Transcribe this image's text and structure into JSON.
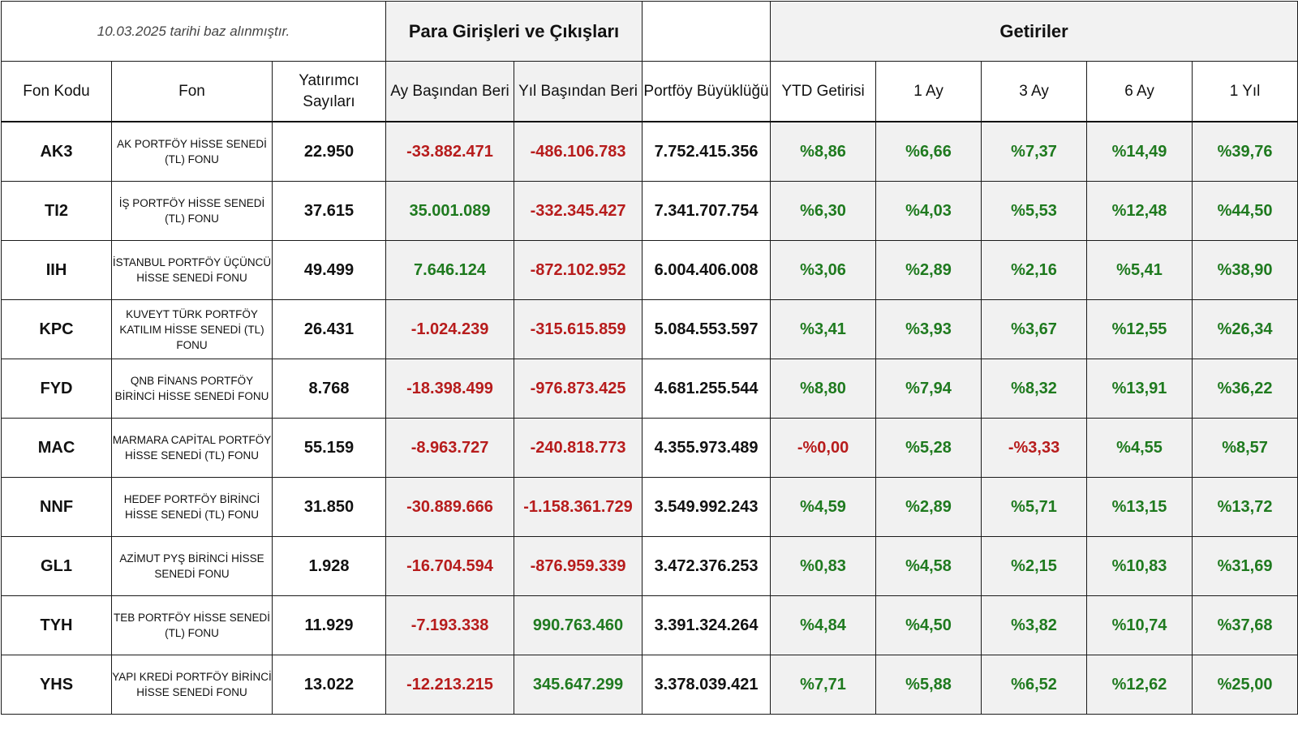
{
  "note": "10.03.2025  tarihi baz alınmıştır.",
  "group_flows": "Para Girişleri ve Çıkışları",
  "group_returns": "Getiriler",
  "headers": {
    "code": "Fon Kodu",
    "fund": "Fon",
    "investors": "Yatırımcı Sayıları",
    "mtd": "Ay Başından Beri",
    "ytd": "Yıl Başından Beri",
    "size": "Portföy Büyüklüğü",
    "ret_ytd": "YTD Getirisi",
    "ret_1m": "1 Ay",
    "ret_3m": "3 Ay",
    "ret_6m": "6 Ay",
    "ret_1y": "1 Yıl"
  },
  "colors": {
    "negative": "#b71c1c",
    "positive": "#1f7a1f",
    "shade": "#f1f1f1"
  },
  "rows": [
    {
      "code": "AK3",
      "fund": "AK PORTFÖY HİSSE SENEDİ (TL) FONU",
      "investors": "22.950",
      "mtd": "-33.882.471",
      "ytd": "-486.106.783",
      "size": "7.752.415.356",
      "r_ytd": "%8,86",
      "r_1m": "%6,66",
      "r_3m": "%7,37",
      "r_6m": "%14,49",
      "r_1y": "%39,76"
    },
    {
      "code": "TI2",
      "fund": "İŞ PORTFÖY HİSSE SENEDİ (TL) FONU",
      "investors": "37.615",
      "mtd": "35.001.089",
      "ytd": "-332.345.427",
      "size": "7.341.707.754",
      "r_ytd": "%6,30",
      "r_1m": "%4,03",
      "r_3m": "%5,53",
      "r_6m": "%12,48",
      "r_1y": "%44,50"
    },
    {
      "code": "IIH",
      "fund": "İSTANBUL PORTFÖY ÜÇÜNCÜ HİSSE SENEDİ FONU",
      "investors": "49.499",
      "mtd": "7.646.124",
      "ytd": "-872.102.952",
      "size": "6.004.406.008",
      "r_ytd": "%3,06",
      "r_1m": "%2,89",
      "r_3m": "%2,16",
      "r_6m": "%5,41",
      "r_1y": "%38,90"
    },
    {
      "code": "KPC",
      "fund": "KUVEYT TÜRK PORTFÖY KATILIM HİSSE SENEDİ (TL) FONU",
      "investors": "26.431",
      "mtd": "-1.024.239",
      "ytd": "-315.615.859",
      "size": "5.084.553.597",
      "r_ytd": "%3,41",
      "r_1m": "%3,93",
      "r_3m": "%3,67",
      "r_6m": "%12,55",
      "r_1y": "%26,34"
    },
    {
      "code": "FYD",
      "fund": "QNB FİNANS PORTFÖY BİRİNCİ HİSSE SENEDİ FONU",
      "investors": "8.768",
      "mtd": "-18.398.499",
      "ytd": "-976.873.425",
      "size": "4.681.255.544",
      "r_ytd": "%8,80",
      "r_1m": "%7,94",
      "r_3m": "%8,32",
      "r_6m": "%13,91",
      "r_1y": "%36,22"
    },
    {
      "code": "MAC",
      "fund": "MARMARA CAPİTAL PORTFÖY HİSSE SENEDİ (TL) FONU",
      "investors": "55.159",
      "mtd": "-8.963.727",
      "ytd": "-240.818.773",
      "size": "4.355.973.489",
      "r_ytd": "-%0,00",
      "r_1m": "%5,28",
      "r_3m": "-%3,33",
      "r_6m": "%4,55",
      "r_1y": "%8,57"
    },
    {
      "code": "NNF",
      "fund": "HEDEF PORTFÖY BİRİNCİ HİSSE SENEDİ (TL) FONU",
      "investors": "31.850",
      "mtd": "-30.889.666",
      "ytd": "-1.158.361.729",
      "size": "3.549.992.243",
      "r_ytd": "%4,59",
      "r_1m": "%2,89",
      "r_3m": "%5,71",
      "r_6m": "%13,15",
      "r_1y": "%13,72"
    },
    {
      "code": "GL1",
      "fund": "AZİMUT PYŞ BİRİNCİ HİSSE SENEDİ FONU",
      "investors": "1.928",
      "mtd": "-16.704.594",
      "ytd": "-876.959.339",
      "size": "3.472.376.253",
      "r_ytd": "%0,83",
      "r_1m": "%4,58",
      "r_3m": "%2,15",
      "r_6m": "%10,83",
      "r_1y": "%31,69"
    },
    {
      "code": "TYH",
      "fund": "TEB PORTFÖY HİSSE SENEDİ (TL) FONU",
      "investors": "11.929",
      "mtd": "-7.193.338",
      "ytd": "990.763.460",
      "size": "3.391.324.264",
      "r_ytd": "%4,84",
      "r_1m": "%4,50",
      "r_3m": "%3,82",
      "r_6m": "%10,74",
      "r_1y": "%37,68"
    },
    {
      "code": "YHS",
      "fund": "YAPI KREDİ PORTFÖY BİRİNCİ HİSSE SENEDİ FONU",
      "investors": "13.022",
      "mtd": "-12.213.215",
      "ytd": "345.647.299",
      "size": "3.378.039.421",
      "r_ytd": "%7,71",
      "r_1m": "%5,88",
      "r_3m": "%6,52",
      "r_6m": "%12,62",
      "r_1y": "%25,00"
    }
  ]
}
